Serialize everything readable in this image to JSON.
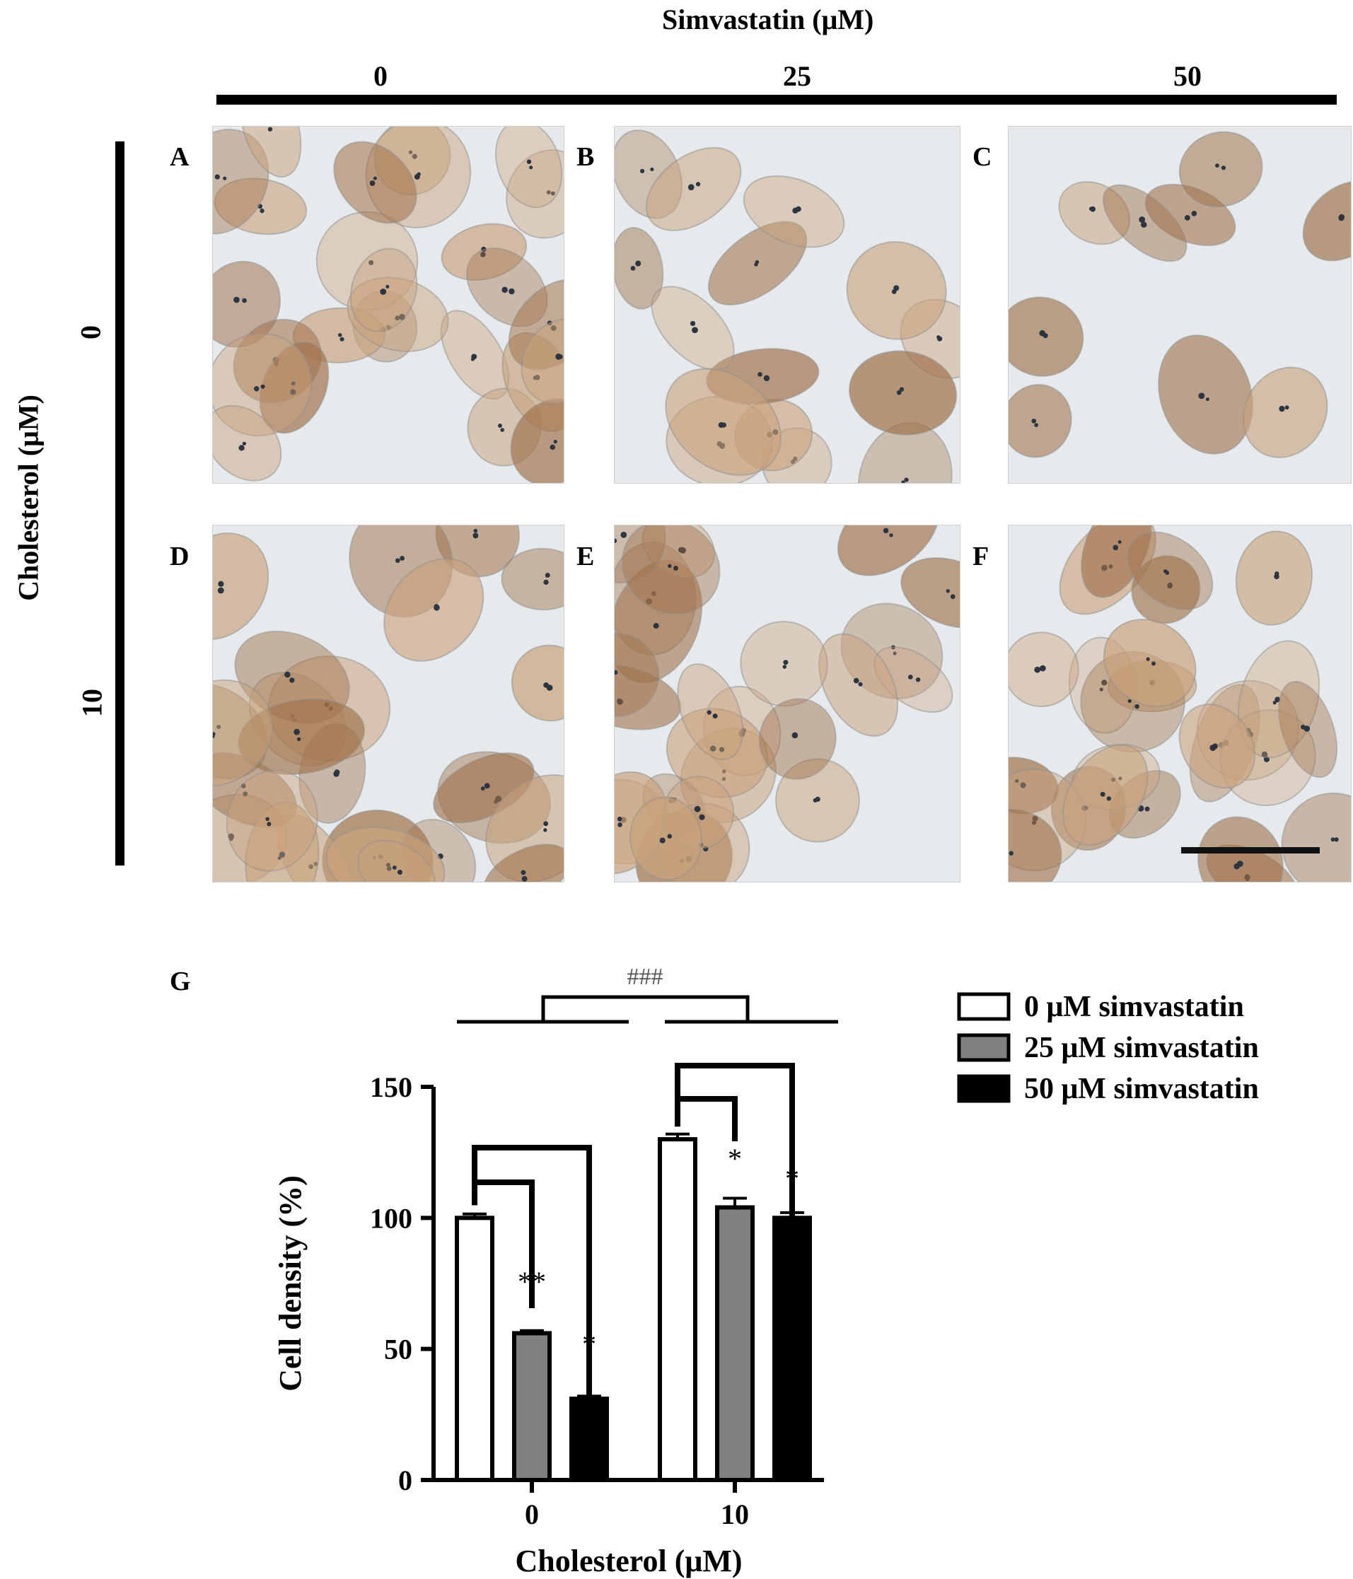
{
  "figure": {
    "top_axis_title": "Simvastatin (μM)",
    "column_labels": [
      "0",
      "25",
      "50"
    ],
    "side_axis_title": "Cholesterol (μM)",
    "row_labels": [
      "0",
      "10"
    ],
    "panel_letters": [
      "A",
      "B",
      "C",
      "D",
      "E",
      "F"
    ]
  },
  "colors": {
    "cell_dense": "#a0714a",
    "cell_light": "#c9a27c",
    "background_light": "#e6eaec",
    "series_0": "#ffffff",
    "series_25": "#808080",
    "series_50": "#000000"
  },
  "chart_data": {
    "type": "bar",
    "panel_letter": "G",
    "categories": [
      "0",
      "10"
    ],
    "xlabel": "Cholesterol (μM)",
    "ylabel": "Cell density (%)",
    "ylim": [
      0,
      150
    ],
    "yticks": [
      "0",
      "50",
      "100",
      "150"
    ],
    "series": [
      {
        "name": "0 μM simvastatin",
        "values": [
          100,
          130
        ],
        "errors": [
          1.5,
          2
        ],
        "color": "#ffffff"
      },
      {
        "name": "25 μM simvastatin",
        "values": [
          56,
          104
        ],
        "errors": [
          1,
          3.5
        ],
        "color": "#808080"
      },
      {
        "name": "50 μM simvastatin",
        "values": [
          31,
          100
        ],
        "errors": [
          1,
          2
        ],
        "color": "#000000"
      }
    ],
    "annotations": {
      "group_significance": "###",
      "bar_marks": [
        [
          "",
          "**",
          "*"
        ],
        [
          "",
          "*",
          "*"
        ]
      ]
    },
    "legend_position": "top-right",
    "grid": false
  }
}
